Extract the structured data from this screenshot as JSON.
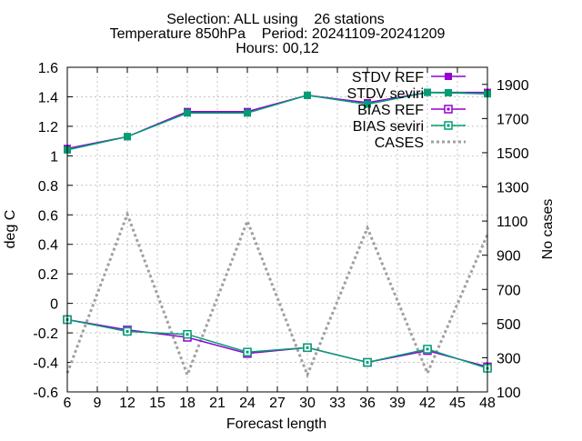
{
  "chart_data": {
    "type": "line",
    "title_lines": [
      "Selection: ALL using    26 stations",
      "Temperature 850hPa    Period: 20241109-20241209",
      "Hours: 00,12"
    ],
    "xlabel": "Forecast length",
    "ylabel": "deg C",
    "y2label": "No cases",
    "xlim": [
      6,
      48
    ],
    "ylim": [
      -0.6,
      1.6
    ],
    "y2lim": [
      100,
      2000
    ],
    "x_ticks": [
      6,
      9,
      12,
      15,
      18,
      21,
      24,
      27,
      30,
      33,
      36,
      39,
      42,
      45,
      48
    ],
    "y_ticks": [
      -0.6,
      -0.4,
      -0.2,
      0,
      0.2,
      0.4,
      0.6,
      0.8,
      1,
      1.2,
      1.4,
      1.6
    ],
    "y_tick_labels": [
      "-0.6",
      "-0.4",
      "-0.2",
      "0",
      "0.2",
      "0.4",
      "0.6",
      "0.8",
      "1",
      "1.2",
      "1.4",
      "1.6"
    ],
    "y2_ticks": [
      100,
      300,
      500,
      700,
      900,
      1100,
      1300,
      1500,
      1700,
      1900
    ],
    "grid": true,
    "legend_position": "top-right",
    "series": [
      {
        "name": "STDV REF",
        "axis": "y",
        "color": "#9400d3",
        "marker": "filled-square",
        "dash": "",
        "x": [
          6,
          12,
          18,
          24,
          30,
          36,
          42,
          48
        ],
        "values": [
          1.05,
          1.13,
          1.3,
          1.3,
          1.41,
          1.36,
          1.43,
          1.43
        ]
      },
      {
        "name": "STDV seviri",
        "axis": "y",
        "color": "#009e73",
        "marker": "filled-square",
        "dash": "",
        "x": [
          6,
          12,
          18,
          24,
          30,
          36,
          42,
          48
        ],
        "values": [
          1.04,
          1.13,
          1.29,
          1.29,
          1.41,
          1.35,
          1.43,
          1.42
        ]
      },
      {
        "name": "BIAS REF",
        "axis": "y",
        "color": "#9400d3",
        "marker": "open-square",
        "dash": "",
        "x": [
          6,
          12,
          18,
          24,
          30,
          36,
          42,
          48
        ],
        "values": [
          -0.11,
          -0.18,
          -0.23,
          -0.34,
          -0.3,
          -0.4,
          -0.32,
          -0.43
        ]
      },
      {
        "name": "BIAS seviri",
        "axis": "y",
        "color": "#009e73",
        "marker": "open-square",
        "dash": "",
        "x": [
          6,
          12,
          18,
          24,
          30,
          36,
          42,
          48
        ],
        "values": [
          -0.11,
          -0.19,
          -0.21,
          -0.33,
          -0.3,
          -0.4,
          -0.31,
          -0.44
        ]
      },
      {
        "name": "CASES",
        "axis": "y2",
        "color": "#a0a0a0",
        "marker": "none",
        "dash": "3,3",
        "x": [
          6,
          12,
          18,
          24,
          30,
          36,
          42,
          48
        ],
        "values": [
          210,
          1140,
          200,
          1100,
          200,
          1060,
          210,
          1020
        ]
      }
    ]
  }
}
